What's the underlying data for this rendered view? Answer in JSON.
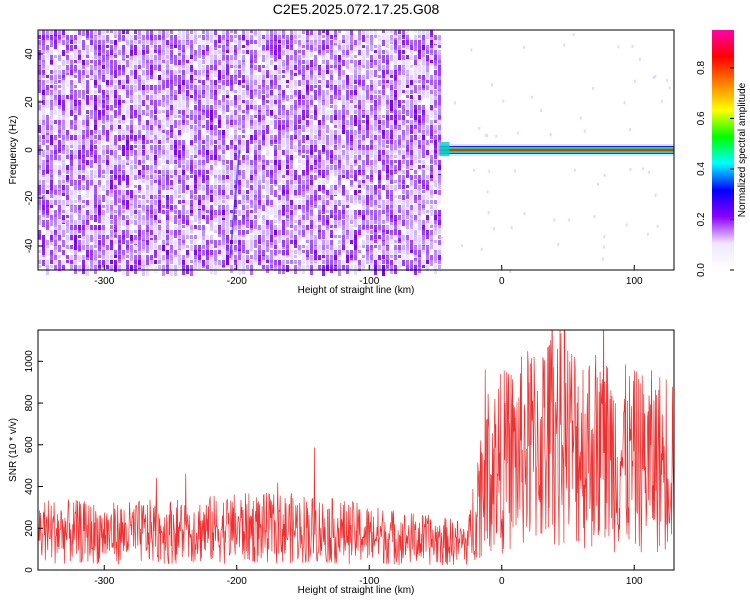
{
  "title": "C2E5.2025.072.17.25.G08",
  "chart_data": [
    {
      "type": "heatmap",
      "xlabel": "Height of straight line (km)",
      "ylabel": "Frequency (Hz)",
      "xlim": [
        -350,
        130
      ],
      "ylim": [
        -50,
        50
      ],
      "xticks": [
        -300,
        -200,
        -100,
        0,
        100
      ],
      "yticks": [
        -40,
        -20,
        0,
        20,
        40
      ],
      "noise_region_x": [
        -350,
        -47
      ],
      "signal_line": {
        "x_start": -47,
        "x_end": 130,
        "frequency": 0
      },
      "colorbar": {
        "label": "Normalized spectral amplitude",
        "range": [
          0,
          0.95
        ],
        "ticks": [
          0.0,
          0.2,
          0.4,
          0.6,
          0.8
        ],
        "tick_labels": [
          "0.0",
          "0.2",
          "0.4",
          "0.6",
          "0.8"
        ],
        "colors": [
          "#ffffff",
          "#f0e6ff",
          "#8b00ff",
          "#0000ff",
          "#00ffff",
          "#00ff00",
          "#ffff00",
          "#ff8000",
          "#ff0000",
          "#ff00aa"
        ]
      }
    },
    {
      "type": "line",
      "xlabel": "Height of straight line (km)",
      "ylabel": "SNR (10 * v/v)",
      "xlim": [
        -350,
        130
      ],
      "ylim": [
        0,
        1150
      ],
      "xticks": [
        -300,
        -200,
        -100,
        0,
        100
      ],
      "yticks": [
        0,
        200,
        400,
        600,
        800,
        1000
      ],
      "color": "#f03030",
      "series": [
        {
          "x": [
            -350,
            -300,
            -250,
            -200,
            -150,
            -100,
            -50,
            -25,
            -20,
            -15,
            -10,
            0,
            10,
            25,
            40,
            60,
            80,
            100,
            120,
            130
          ],
          "y": [
            190,
            175,
            185,
            200,
            200,
            170,
            140,
            130,
            300,
            420,
            480,
            520,
            540,
            600,
            640,
            600,
            560,
            520,
            520,
            560
          ]
        }
      ]
    }
  ]
}
